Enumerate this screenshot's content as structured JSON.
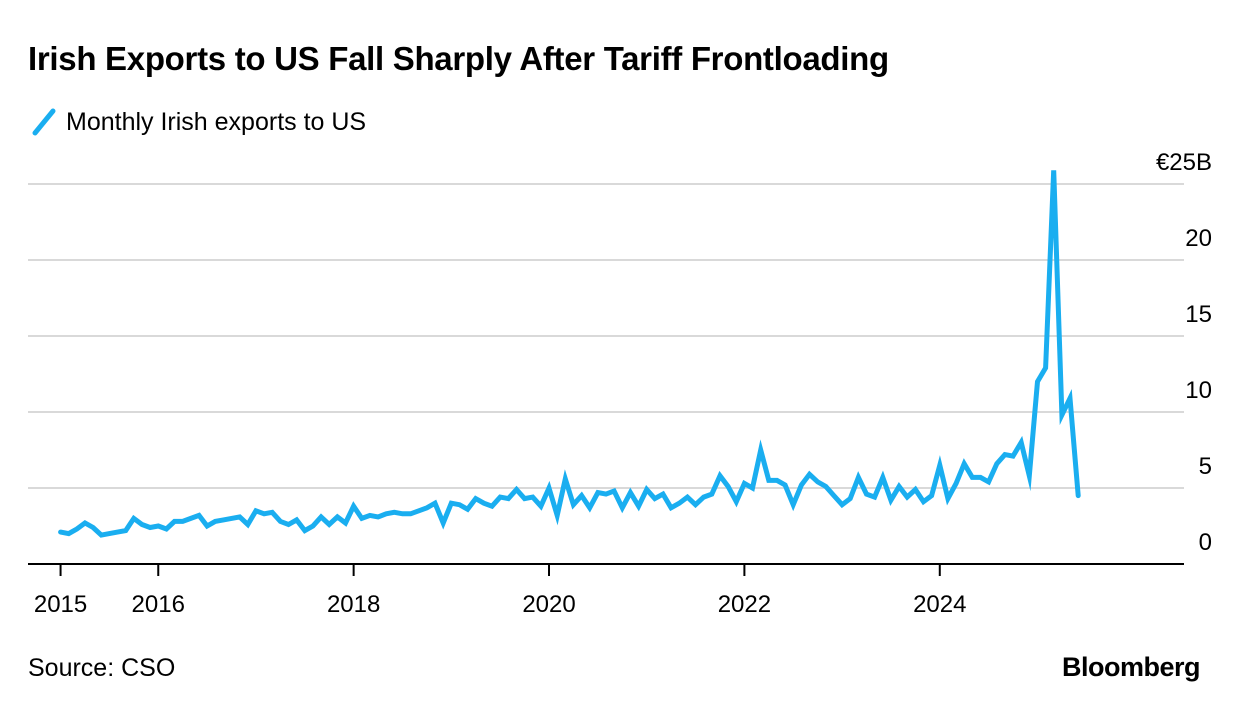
{
  "title": "Irish Exports to US Fall Sharply After Tariff Frontloading",
  "source": "Source: CSO",
  "brand": "Bloomberg",
  "colors": {
    "series": "#1aaef0",
    "grid": "#d9d9d9",
    "axis": "#000000"
  },
  "chart_data": {
    "type": "line",
    "title": "Irish Exports to US Fall Sharply After Tariff Frontloading",
    "xlabel": "",
    "ylabel": "",
    "xlim": [
      "2014-09",
      "2026-07"
    ],
    "ylim": [
      0,
      25
    ],
    "y_ticks": [
      0,
      5,
      10,
      15,
      20,
      25
    ],
    "y_tick_labels": [
      "0",
      "5",
      "10",
      "15",
      "20",
      "€25B"
    ],
    "x_ticks": [
      "2015-01",
      "2016-01",
      "2018-01",
      "2020-01",
      "2022-01",
      "2024-01"
    ],
    "x_tick_labels": [
      "2015",
      "2016",
      "2018",
      "2020",
      "2022",
      "2024"
    ],
    "grid": true,
    "legend_position": "top-left",
    "series": [
      {
        "name": "Monthly Irish exports to US",
        "color": "#1aaef0",
        "x": [
          "2015-01",
          "2015-02",
          "2015-03",
          "2015-04",
          "2015-05",
          "2015-06",
          "2015-07",
          "2015-08",
          "2015-09",
          "2015-10",
          "2015-11",
          "2015-12",
          "2016-01",
          "2016-02",
          "2016-03",
          "2016-04",
          "2016-05",
          "2016-06",
          "2016-07",
          "2016-08",
          "2016-09",
          "2016-10",
          "2016-11",
          "2016-12",
          "2017-01",
          "2017-02",
          "2017-03",
          "2017-04",
          "2017-05",
          "2017-06",
          "2017-07",
          "2017-08",
          "2017-09",
          "2017-10",
          "2017-11",
          "2017-12",
          "2018-01",
          "2018-02",
          "2018-03",
          "2018-04",
          "2018-05",
          "2018-06",
          "2018-07",
          "2018-08",
          "2018-09",
          "2018-10",
          "2018-11",
          "2018-12",
          "2019-01",
          "2019-02",
          "2019-03",
          "2019-04",
          "2019-05",
          "2019-06",
          "2019-07",
          "2019-08",
          "2019-09",
          "2019-10",
          "2019-11",
          "2019-12",
          "2020-01",
          "2020-02",
          "2020-03",
          "2020-04",
          "2020-05",
          "2020-06",
          "2020-07",
          "2020-08",
          "2020-09",
          "2020-10",
          "2020-11",
          "2020-12",
          "2021-01",
          "2021-02",
          "2021-03",
          "2021-04",
          "2021-05",
          "2021-06",
          "2021-07",
          "2021-08",
          "2021-09",
          "2021-10",
          "2021-11",
          "2021-12",
          "2022-01",
          "2022-02",
          "2022-03",
          "2022-04",
          "2022-05",
          "2022-06",
          "2022-07",
          "2022-08",
          "2022-09",
          "2022-10",
          "2022-11",
          "2022-12",
          "2023-01",
          "2023-02",
          "2023-03",
          "2023-04",
          "2023-05",
          "2023-06",
          "2023-07",
          "2023-08",
          "2023-09",
          "2023-10",
          "2023-11",
          "2023-12",
          "2024-01",
          "2024-02",
          "2024-03",
          "2024-04",
          "2024-05",
          "2024-06",
          "2024-07",
          "2024-08",
          "2024-09",
          "2024-10",
          "2024-11",
          "2024-12",
          "2025-01",
          "2025-02",
          "2025-03",
          "2025-04",
          "2025-05",
          "2025-06"
        ],
        "values": [
          2.1,
          2.0,
          2.3,
          2.7,
          2.4,
          1.9,
          2.0,
          2.1,
          2.2,
          3.0,
          2.6,
          2.4,
          2.5,
          2.3,
          2.8,
          2.8,
          3.0,
          3.2,
          2.5,
          2.8,
          2.9,
          3.0,
          3.1,
          2.6,
          3.5,
          3.3,
          3.4,
          2.8,
          2.6,
          2.9,
          2.2,
          2.5,
          3.1,
          2.6,
          3.1,
          2.7,
          3.8,
          3.0,
          3.2,
          3.1,
          3.3,
          3.4,
          3.3,
          3.3,
          3.5,
          3.7,
          4.0,
          2.7,
          4.0,
          3.9,
          3.6,
          4.3,
          4.0,
          3.8,
          4.4,
          4.3,
          4.9,
          4.3,
          4.4,
          3.8,
          5.0,
          3.2,
          5.6,
          3.9,
          4.5,
          3.7,
          4.7,
          4.6,
          4.8,
          3.7,
          4.7,
          3.8,
          4.9,
          4.3,
          4.6,
          3.7,
          4.0,
          4.4,
          3.9,
          4.4,
          4.6,
          5.8,
          5.1,
          4.1,
          5.3,
          5.0,
          7.5,
          5.5,
          5.5,
          5.2,
          3.9,
          5.2,
          5.9,
          5.4,
          5.1,
          4.5,
          3.9,
          4.3,
          5.7,
          4.6,
          4.4,
          5.7,
          4.2,
          5.1,
          4.4,
          4.9,
          4.1,
          4.5,
          6.5,
          4.3,
          5.3,
          6.6,
          5.7,
          5.7,
          5.4,
          6.6,
          7.2,
          7.1,
          8.0,
          5.8,
          12.0,
          12.9,
          25.9,
          9.8,
          10.9,
          4.5
        ]
      }
    ]
  }
}
